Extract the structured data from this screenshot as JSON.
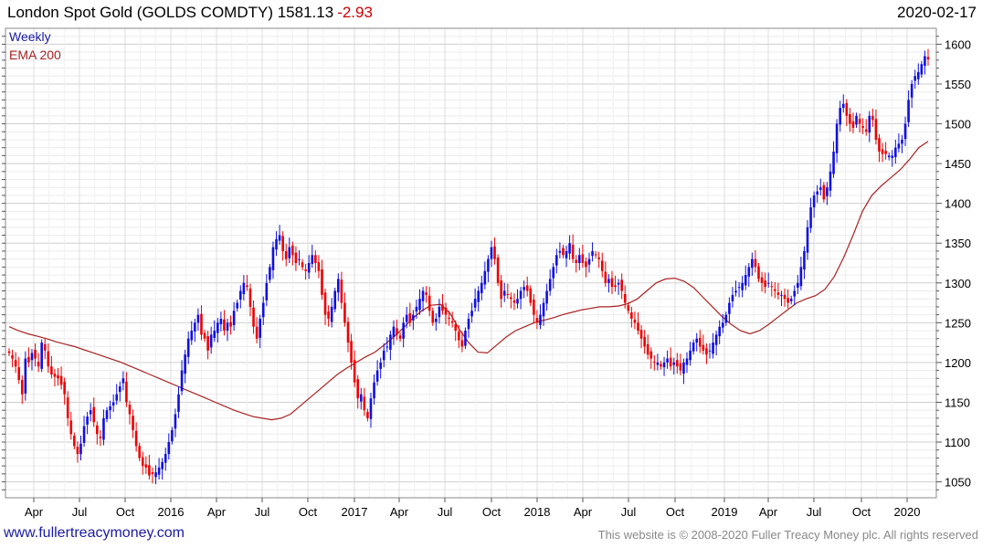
{
  "header": {
    "title": "London Spot Gold (GOLDS COMDTY) 1581.13",
    "change": "-2.93",
    "date": "2020-02-17"
  },
  "legend": {
    "series1": "Weekly",
    "series2": "EMA 200"
  },
  "footer": {
    "site": "www.fullertreacymoney.com",
    "copyright": "This website is © 2008-2020 Fuller Treacy Money plc. All rights reserved"
  },
  "colors": {
    "up": "#1010dd",
    "down": "#ee0000",
    "ema": "#aa2222",
    "grid": "#d9d9d9",
    "change": "#cc0000"
  },
  "chart_data": {
    "type": "candlestick",
    "ylim": [
      1030,
      1620
    ],
    "yticks": [
      1050,
      1100,
      1150,
      1200,
      1250,
      1300,
      1350,
      1400,
      1450,
      1500,
      1550,
      1600
    ],
    "xticks": [
      "Apr",
      "Jul",
      "Oct",
      "2016",
      "Apr",
      "Jul",
      "Oct",
      "2017",
      "Apr",
      "Jul",
      "Oct",
      "2018",
      "Apr",
      "Jul",
      "Oct",
      "2019",
      "Apr",
      "Jul",
      "Oct",
      "2020"
    ],
    "grid": true,
    "legend_position": "top-left",
    "weekly_close": [
      1212,
      1205,
      1195,
      1178,
      1160,
      1205,
      1200,
      1212,
      1205,
      1195,
      1225,
      1215,
      1195,
      1185,
      1182,
      1180,
      1172,
      1160,
      1130,
      1110,
      1095,
      1085,
      1098,
      1120,
      1132,
      1140,
      1125,
      1110,
      1105,
      1130,
      1140,
      1145,
      1150,
      1160,
      1170,
      1180,
      1150,
      1135,
      1115,
      1095,
      1080,
      1070,
      1068,
      1058,
      1060,
      1062,
      1068,
      1075,
      1085,
      1100,
      1115,
      1135,
      1160,
      1190,
      1210,
      1230,
      1240,
      1250,
      1260,
      1235,
      1230,
      1215,
      1235,
      1240,
      1250,
      1255,
      1240,
      1250,
      1245,
      1265,
      1275,
      1290,
      1300,
      1295,
      1270,
      1245,
      1230,
      1255,
      1275,
      1300,
      1320,
      1345,
      1355,
      1360,
      1340,
      1330,
      1345,
      1335,
      1325,
      1330,
      1320,
      1315,
      1325,
      1335,
      1325,
      1315,
      1285,
      1260,
      1255,
      1270,
      1290,
      1305,
      1275,
      1250,
      1225,
      1200,
      1175,
      1155,
      1160,
      1140,
      1130,
      1155,
      1175,
      1190,
      1200,
      1215,
      1220,
      1235,
      1245,
      1235,
      1230,
      1250,
      1260,
      1250,
      1260,
      1270,
      1280,
      1290,
      1285,
      1265,
      1250,
      1255,
      1270,
      1265,
      1260,
      1255,
      1250,
      1240,
      1228,
      1220,
      1240,
      1255,
      1265,
      1280,
      1290,
      1300,
      1315,
      1330,
      1345,
      1330,
      1300,
      1280,
      1290,
      1285,
      1280,
      1275,
      1280,
      1290,
      1295,
      1290,
      1275,
      1260,
      1250,
      1260,
      1275,
      1290,
      1305,
      1320,
      1335,
      1340,
      1335,
      1340,
      1350,
      1330,
      1325,
      1335,
      1325,
      1320,
      1330,
      1340,
      1335,
      1330,
      1315,
      1300,
      1305,
      1295,
      1295,
      1300,
      1290,
      1275,
      1265,
      1255,
      1250,
      1240,
      1230,
      1220,
      1210,
      1205,
      1200,
      1200,
      1195,
      1200,
      1205,
      1195,
      1200,
      1195,
      1190,
      1200,
      1205,
      1215,
      1225,
      1230,
      1220,
      1215,
      1210,
      1215,
      1225,
      1235,
      1245,
      1250,
      1260,
      1275,
      1285,
      1290,
      1295,
      1300,
      1310,
      1320,
      1330,
      1320,
      1305,
      1300,
      1295,
      1300,
      1295,
      1290,
      1285,
      1285,
      1280,
      1275,
      1280,
      1290,
      1300,
      1320,
      1340,
      1370,
      1395,
      1410,
      1415,
      1420,
      1405,
      1420,
      1440,
      1465,
      1500,
      1520,
      1525,
      1510,
      1500,
      1495,
      1510,
      1500,
      1495,
      1490,
      1510,
      1505,
      1480,
      1465,
      1462,
      1462,
      1460,
      1460,
      1470,
      1475,
      1480,
      1500,
      1530,
      1550,
      1560,
      1565,
      1575,
      1585,
      1581
    ],
    "ema_200": [
      1245,
      1240,
      1236,
      1233,
      1230,
      1226,
      1223,
      1220,
      1216,
      1212,
      1208,
      1204,
      1200,
      1195,
      1190,
      1185,
      1180,
      1175,
      1170,
      1165,
      1160,
      1155,
      1150,
      1145,
      1140,
      1136,
      1132,
      1130,
      1128,
      1130,
      1135,
      1145,
      1155,
      1165,
      1175,
      1185,
      1193,
      1200,
      1207,
      1213,
      1222,
      1232,
      1243,
      1255,
      1265,
      1272,
      1273,
      1262,
      1242,
      1225,
      1213,
      1212,
      1222,
      1232,
      1240,
      1245,
      1250,
      1253,
      1256,
      1260,
      1263,
      1266,
      1268,
      1270,
      1270,
      1271,
      1274,
      1280,
      1290,
      1300,
      1305,
      1306,
      1302,
      1294,
      1282,
      1270,
      1258,
      1248,
      1240,
      1236,
      1240,
      1248,
      1257,
      1266,
      1275,
      1280,
      1284,
      1292,
      1308,
      1332,
      1360,
      1390,
      1410,
      1422,
      1432,
      1442,
      1455,
      1470,
      1478
    ],
    "annotations": []
  }
}
